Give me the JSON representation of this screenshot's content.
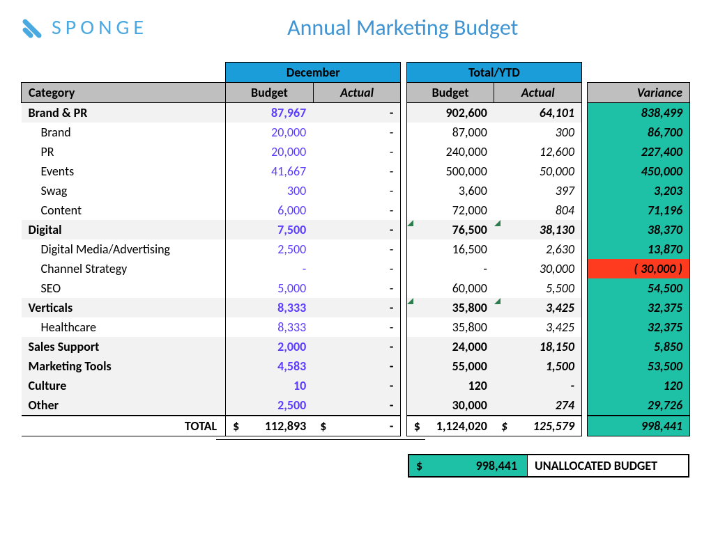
{
  "brand": {
    "name": "SPONGE",
    "color": "#4aa9e0"
  },
  "title": {
    "text": "Annual Marketing Budget",
    "color": "#3f94d1"
  },
  "colors": {
    "period_header_bg": "#1b9dd9",
    "col_header_bg": "#bfbfbf",
    "stripe_bg": "#f2f2f2",
    "budget_link": "#5b3bff",
    "variance_pos_bg": "#1fc1a6",
    "variance_neg_bg": "#ff3b1f",
    "tick": "#2e7d4f"
  },
  "headers": {
    "category": "Category",
    "period1": "December",
    "period2": "Total/YTD",
    "budget": "Budget",
    "actual": "Actual",
    "variance": "Variance"
  },
  "rows": [
    {
      "type": "header",
      "label": "Brand & PR",
      "dec_budget": "87,967",
      "dec_actual": "-",
      "ytd_budget": "902,600",
      "ytd_actual": "64,101",
      "variance": "838,499",
      "var_neg": false
    },
    {
      "type": "sub",
      "label": "Brand",
      "dec_budget": "20,000",
      "dec_actual": "-",
      "ytd_budget": "87,000",
      "ytd_actual": "300",
      "variance": "86,700",
      "var_neg": false
    },
    {
      "type": "sub",
      "label": "PR",
      "dec_budget": "20,000",
      "dec_actual": "-",
      "ytd_budget": "240,000",
      "ytd_actual": "12,600",
      "variance": "227,400",
      "var_neg": false
    },
    {
      "type": "sub",
      "label": "Events",
      "dec_budget": "41,667",
      "dec_actual": "-",
      "ytd_budget": "500,000",
      "ytd_actual": "50,000",
      "variance": "450,000",
      "var_neg": false
    },
    {
      "type": "sub",
      "label": "Swag",
      "dec_budget": "300",
      "dec_actual": "-",
      "ytd_budget": "3,600",
      "ytd_actual": "397",
      "variance": "3,203",
      "var_neg": false
    },
    {
      "type": "sub",
      "label": "Content",
      "dec_budget": "6,000",
      "dec_actual": "-",
      "ytd_budget": "72,000",
      "ytd_actual": "804",
      "variance": "71,196",
      "var_neg": false
    },
    {
      "type": "header",
      "label": "Digital",
      "dec_budget": "7,500",
      "dec_actual": "-",
      "ytd_budget": "76,500",
      "ytd_actual": "38,130",
      "variance": "38,370",
      "var_neg": false,
      "ticks": true
    },
    {
      "type": "sub",
      "label": "Digital Media/Advertising",
      "dec_budget": "2,500",
      "dec_actual": "-",
      "ytd_budget": "16,500",
      "ytd_actual": "2,630",
      "variance": "13,870",
      "var_neg": false
    },
    {
      "type": "sub",
      "label": "Channel Strategy",
      "dec_budget": "-",
      "dec_actual": "-",
      "ytd_budget": "-",
      "ytd_actual": "30,000",
      "variance": "( 30,000 )",
      "var_neg": true
    },
    {
      "type": "sub",
      "label": "SEO",
      "dec_budget": "5,000",
      "dec_actual": "-",
      "ytd_budget": "60,000",
      "ytd_actual": "5,500",
      "variance": "54,500",
      "var_neg": false
    },
    {
      "type": "header",
      "label": "Verticals",
      "dec_budget": "8,333",
      "dec_actual": "-",
      "ytd_budget": "35,800",
      "ytd_actual": "3,425",
      "variance": "32,375",
      "var_neg": false,
      "ticks": true
    },
    {
      "type": "sub",
      "label": "Healthcare",
      "dec_budget": "8,333",
      "dec_actual": "-",
      "ytd_budget": "35,800",
      "ytd_actual": "3,425",
      "variance": "32,375",
      "var_neg": false
    },
    {
      "type": "header",
      "label": "Sales Support",
      "dec_budget": "2,000",
      "dec_actual": "-",
      "ytd_budget": "24,000",
      "ytd_actual": "18,150",
      "variance": "5,850",
      "var_neg": false,
      "subcolor": true
    },
    {
      "type": "header",
      "label": "Marketing Tools",
      "dec_budget": "4,583",
      "dec_actual": "-",
      "ytd_budget": "55,000",
      "ytd_actual": "1,500",
      "variance": "53,500",
      "var_neg": false,
      "subcolor": true
    },
    {
      "type": "header",
      "label": "Culture",
      "dec_budget": "10",
      "dec_actual": "-",
      "ytd_budget": "120",
      "ytd_actual": "-",
      "variance": "120",
      "var_neg": false,
      "subcolor": true
    },
    {
      "type": "header",
      "label": "Other",
      "dec_budget": "2,500",
      "dec_actual": "-",
      "ytd_budget": "30,000",
      "ytd_actual": "274",
      "variance": "29,726",
      "var_neg": false,
      "subcolor": true
    }
  ],
  "total": {
    "label": "TOTAL",
    "dec_budget_prefix": "$",
    "dec_budget": "112,893",
    "dec_actual_prefix": "$",
    "dec_actual": "-",
    "ytd_budget_prefix": "$",
    "ytd_budget": "1,124,020",
    "ytd_actual_prefix": "$",
    "ytd_actual": "125,579",
    "variance": "998,441"
  },
  "unallocated": {
    "prefix": "$",
    "amount": "998,441",
    "label": "UNALLOCATED BUDGET"
  }
}
